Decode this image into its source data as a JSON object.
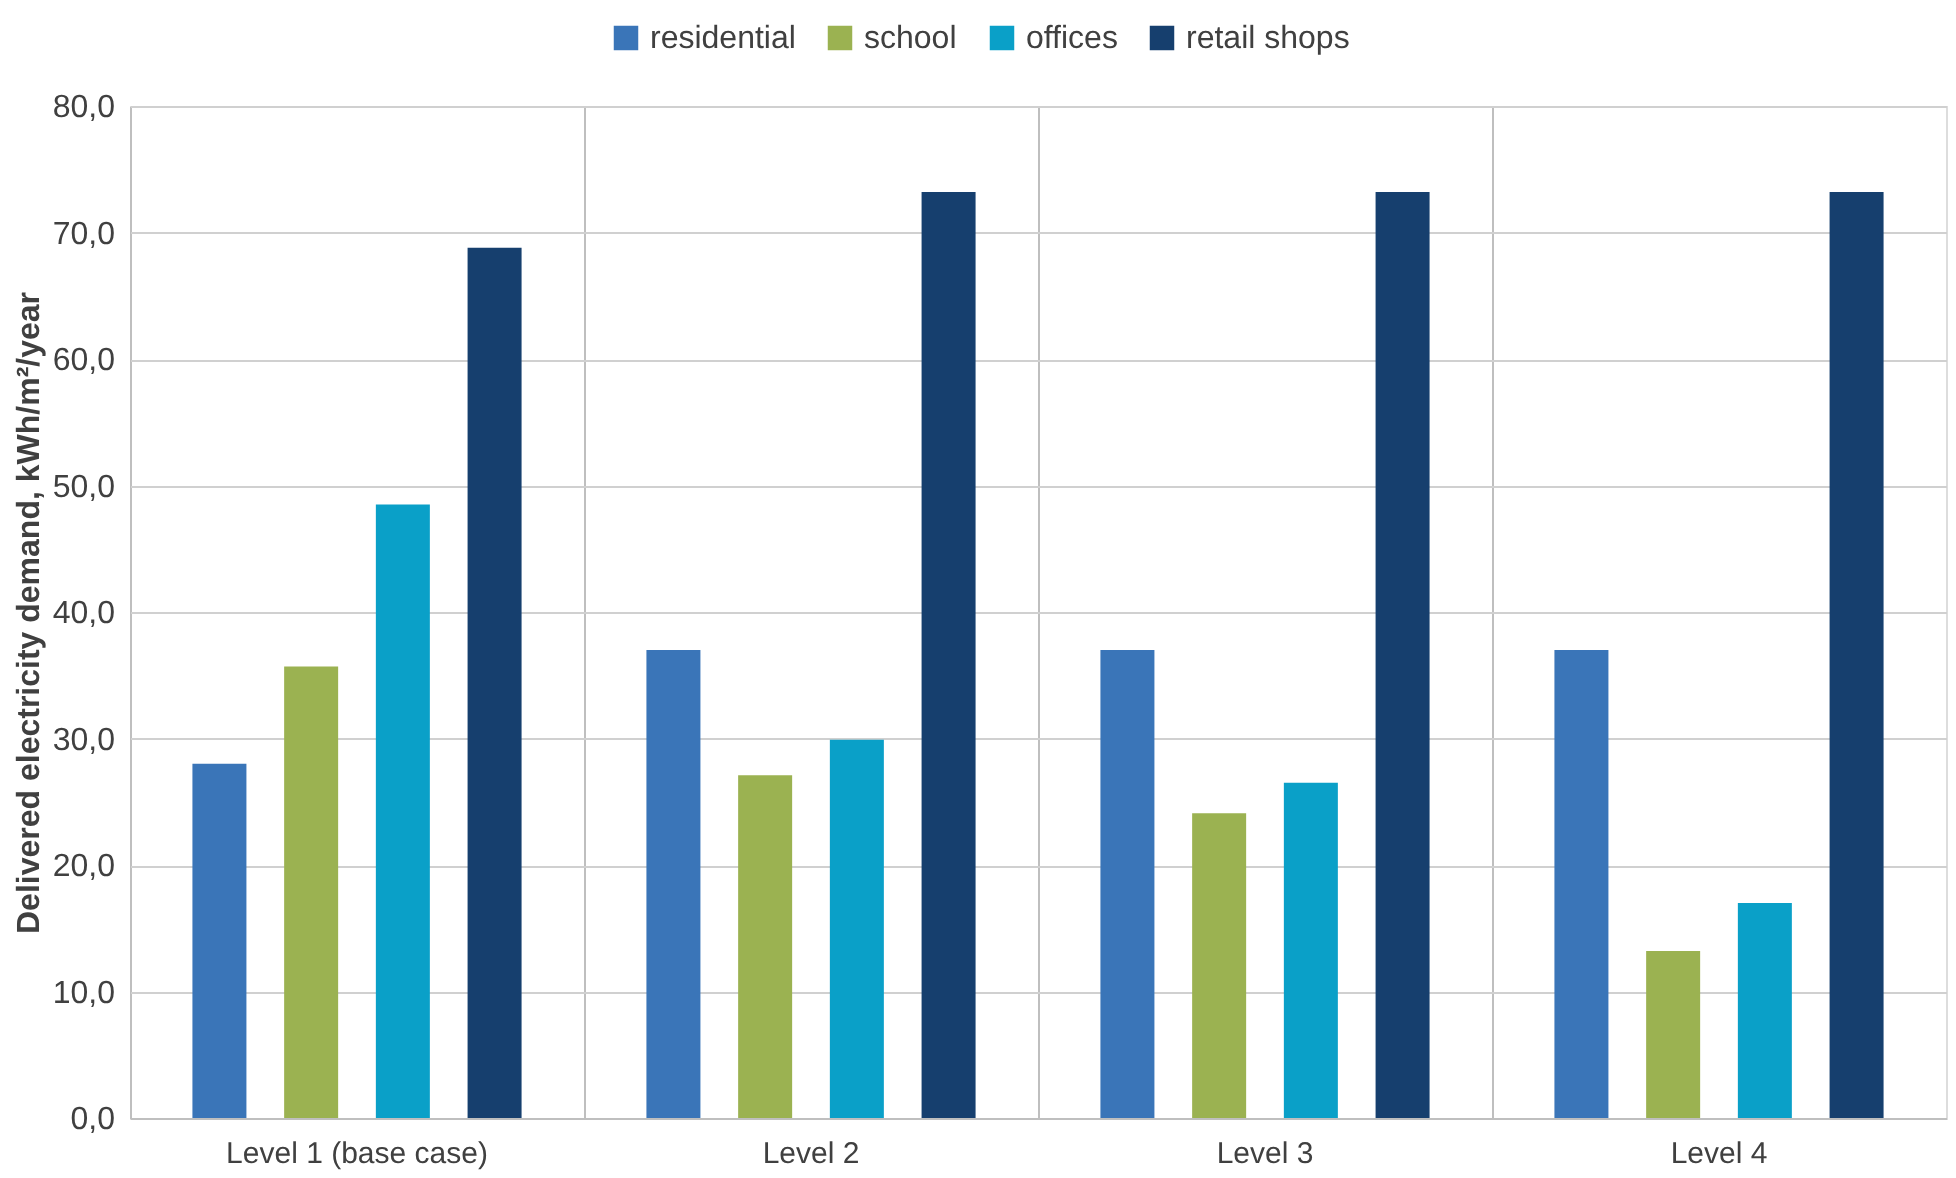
{
  "chart_data": {
    "type": "bar",
    "ylabel": "Delivered electricity demand, kWh/m²/year",
    "categories": [
      "Level 1 (base case)",
      "Level 2",
      "Level 3",
      "Level 4"
    ],
    "series": [
      {
        "name": "residential",
        "color": "#3a75b8",
        "values": [
          28.0,
          37.0,
          37.0,
          37.0
        ]
      },
      {
        "name": "school",
        "color": "#9bb251",
        "values": [
          35.7,
          27.1,
          24.1,
          13.2
        ]
      },
      {
        "name": "offices",
        "color": "#0aa0c8",
        "values": [
          48.5,
          29.9,
          26.5,
          17.0
        ]
      },
      {
        "name": "retail shops",
        "color": "#163f6e",
        "values": [
          68.8,
          73.2,
          73.2,
          73.2
        ]
      }
    ],
    "ylim": [
      0,
      80
    ],
    "yticks": [
      {
        "value": 0,
        "label": "0,0"
      },
      {
        "value": 10,
        "label": "10,0"
      },
      {
        "value": 20,
        "label": "20,0"
      },
      {
        "value": 30,
        "label": "30,0"
      },
      {
        "value": 40,
        "label": "40,0"
      },
      {
        "value": 50,
        "label": "50,0"
      },
      {
        "value": 60,
        "label": "60,0"
      },
      {
        "value": 70,
        "label": "70,0"
      },
      {
        "value": 80,
        "label": "80,0"
      }
    ],
    "grid": true,
    "legend": "top"
  }
}
